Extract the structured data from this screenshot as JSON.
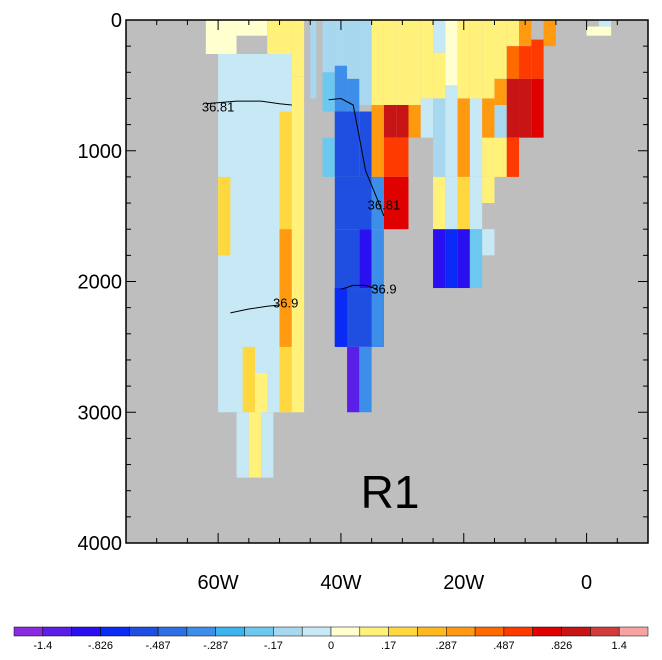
{
  "chart_data": {
    "type": "heatmap",
    "title": "",
    "xlabel": "",
    "ylabel": "",
    "panel_label": "R1",
    "x_axis": {
      "range": [
        -75,
        10
      ],
      "ticks": [
        {
          "value": -60,
          "label": "60W"
        },
        {
          "value": -40,
          "label": "40W"
        },
        {
          "value": -20,
          "label": "20W"
        },
        {
          "value": 0,
          "label": "0"
        }
      ]
    },
    "y_axis": {
      "range": [
        0,
        4000
      ],
      "inverted": true,
      "ticks": [
        {
          "value": 0,
          "label": "0"
        },
        {
          "value": 1000,
          "label": "1000"
        },
        {
          "value": 2000,
          "label": "2000"
        },
        {
          "value": 3000,
          "label": "3000"
        },
        {
          "value": 4000,
          "label": "4000"
        }
      ]
    },
    "missing_color": "#bebebe",
    "colorbar": {
      "colors": [
        "#8a2be2",
        "#5a1ee6",
        "#2a0ff0",
        "#0a2af5",
        "#1f4fe0",
        "#2f6fe6",
        "#3c8ee8",
        "#3cb4f0",
        "#6dc8f0",
        "#a7d8ef",
        "#c7e8f5",
        "#ffffd0",
        "#fff17a",
        "#ffd840",
        "#ffb81e",
        "#ff9a10",
        "#ff6a00",
        "#ff3a00",
        "#e00000",
        "#c81414",
        "#d23c3c",
        "#f7a3a3"
      ],
      "labels": [
        "-1.4",
        "-.826",
        "-.487",
        "-.287",
        "-.17",
        "0",
        ".17",
        ".287",
        ".487",
        ".826",
        "1.4"
      ]
    },
    "cells": [
      {
        "x0": -62,
        "x1": -57,
        "y0": 0,
        "y1": 260,
        "value": 0.0
      },
      {
        "x0": -57,
        "x1": -52,
        "y0": 0,
        "y1": 120,
        "value": 0.0
      },
      {
        "x0": -52,
        "x1": -48,
        "y0": 0,
        "y1": 700,
        "value": 0.12
      },
      {
        "x0": -48,
        "x1": -46,
        "y0": 0,
        "y1": 430,
        "value": 0.12
      },
      {
        "x0": -60,
        "x1": -48,
        "y0": 260,
        "y1": 3000,
        "value": -0.05
      },
      {
        "x0": -60,
        "x1": -58,
        "y0": 1200,
        "y1": 1800,
        "value": 0.2
      },
      {
        "x0": -50,
        "x1": -48,
        "y0": 700,
        "y1": 3000,
        "value": 0.2
      },
      {
        "x0": -50,
        "x1": -48,
        "y0": 1600,
        "y1": 2200,
        "value": 0.35
      },
      {
        "x0": -50,
        "x1": -48,
        "y0": 2200,
        "y1": 2500,
        "value": 0.3
      },
      {
        "x0": -48,
        "x1": -46,
        "y0": 430,
        "y1": 3000,
        "value": 0.12
      },
      {
        "x0": -56,
        "x1": -54,
        "y0": 2500,
        "y1": 3000,
        "value": 0.2
      },
      {
        "x0": -54,
        "x1": -52,
        "y0": 2700,
        "y1": 3000,
        "value": 0.12
      },
      {
        "x0": -57,
        "x1": -55,
        "y0": 3000,
        "y1": 3500,
        "value": -0.05
      },
      {
        "x0": -55,
        "x1": -53,
        "y0": 3000,
        "y1": 3500,
        "value": 0.12
      },
      {
        "x0": -53,
        "x1": -51,
        "y0": 3000,
        "y1": 3500,
        "value": -0.05
      },
      {
        "x0": -45,
        "x1": -44,
        "y0": 0,
        "y1": 600,
        "value": -0.1
      },
      {
        "x0": -43,
        "x1": -41,
        "y0": 0,
        "y1": 400,
        "value": -0.1
      },
      {
        "x0": -43,
        "x1": -41,
        "y0": 400,
        "y1": 700,
        "value": -0.2
      },
      {
        "x0": -41,
        "x1": -39,
        "y0": 0,
        "y1": 350,
        "value": -0.1
      },
      {
        "x0": -41,
        "x1": -39,
        "y0": 350,
        "y1": 900,
        "value": -0.3
      },
      {
        "x0": -39,
        "x1": -37,
        "y0": 0,
        "y1": 450,
        "value": -0.1
      },
      {
        "x0": -39,
        "x1": -37,
        "y0": 450,
        "y1": 700,
        "value": -0.3
      },
      {
        "x0": -37,
        "x1": -35,
        "y0": 0,
        "y1": 650,
        "value": -0.1
      },
      {
        "x0": -35,
        "x1": -33,
        "y0": 0,
        "y1": 650,
        "value": 0.12
      },
      {
        "x0": -33,
        "x1": -31,
        "y0": 0,
        "y1": 650,
        "value": 0.12
      },
      {
        "x0": -31,
        "x1": -29,
        "y0": 0,
        "y1": 650,
        "value": 0.12
      },
      {
        "x0": -29,
        "x1": -27,
        "y0": 0,
        "y1": 650,
        "value": 0.12
      },
      {
        "x0": -43,
        "x1": -41,
        "y0": 900,
        "y1": 1200,
        "value": -0.2
      },
      {
        "x0": -41,
        "x1": -37,
        "y0": 700,
        "y1": 1200,
        "value": -0.5
      },
      {
        "x0": -37,
        "x1": -35,
        "y0": 700,
        "y1": 1200,
        "value": -0.5
      },
      {
        "x0": -35,
        "x1": -33,
        "y0": 650,
        "y1": 1200,
        "value": 0.35
      },
      {
        "x0": -33,
        "x1": -31,
        "y0": 650,
        "y1": 900,
        "value": 1.0
      },
      {
        "x0": -31,
        "x1": -29,
        "y0": 650,
        "y1": 900,
        "value": 1.0
      },
      {
        "x0": -29,
        "x1": -27,
        "y0": 650,
        "y1": 900,
        "value": 0.35
      },
      {
        "x0": -33,
        "x1": -29,
        "y0": 900,
        "y1": 1200,
        "value": 0.6
      },
      {
        "x0": -33,
        "x1": -29,
        "y0": 1200,
        "y1": 1600,
        "value": 0.7
      },
      {
        "x0": -41,
        "x1": -35,
        "y0": 1200,
        "y1": 1600,
        "value": -0.6
      },
      {
        "x0": -35,
        "x1": -33,
        "y0": 1200,
        "y1": 1600,
        "value": -0.3
      },
      {
        "x0": -41,
        "x1": -37,
        "y0": 1600,
        "y1": 2050,
        "value": -0.6
      },
      {
        "x0": -37,
        "x1": -35,
        "y0": 1600,
        "y1": 2050,
        "value": -1.0
      },
      {
        "x0": -35,
        "x1": -33,
        "y0": 1600,
        "y1": 2050,
        "value": -0.3
      },
      {
        "x0": -41,
        "x1": -33,
        "y0": 2050,
        "y1": 2500,
        "value": -0.6
      },
      {
        "x0": -41,
        "x1": -39,
        "y0": 2050,
        "y1": 2500,
        "value": -0.7
      },
      {
        "x0": -35,
        "x1": -33,
        "y0": 2050,
        "y1": 2500,
        "value": -0.3
      },
      {
        "x0": -39,
        "x1": -37,
        "y0": 2500,
        "y1": 3000,
        "value": -1.2
      },
      {
        "x0": -37,
        "x1": -35,
        "y0": 2500,
        "y1": 3000,
        "value": -0.3
      },
      {
        "x0": -27,
        "x1": -25,
        "y0": 0,
        "y1": 600,
        "value": 0.12
      },
      {
        "x0": -25,
        "x1": -23,
        "y0": 0,
        "y1": 250,
        "value": -0.05
      },
      {
        "x0": -25,
        "x1": -23,
        "y0": 250,
        "y1": 600,
        "value": 0.12
      },
      {
        "x0": -23,
        "x1": -21,
        "y0": 0,
        "y1": 500,
        "value": 0.0
      },
      {
        "x0": -27,
        "x1": -25,
        "y0": 600,
        "y1": 900,
        "value": -0.05
      },
      {
        "x0": -25,
        "x1": -23,
        "y0": 600,
        "y1": 1200,
        "value": -0.15
      },
      {
        "x0": -23,
        "x1": -21,
        "y0": 500,
        "y1": 1200,
        "value": -0.05
      },
      {
        "x0": -21,
        "x1": -19,
        "y0": 0,
        "y1": 600,
        "value": 0.12
      },
      {
        "x0": -19,
        "x1": -17,
        "y0": 0,
        "y1": 600,
        "value": 0.12
      },
      {
        "x0": -17,
        "x1": -15,
        "y0": 0,
        "y1": 600,
        "value": 0.12
      },
      {
        "x0": -21,
        "x1": -19,
        "y0": 600,
        "y1": 1200,
        "value": 0.35
      },
      {
        "x0": -19,
        "x1": -17,
        "y0": 600,
        "y1": 1200,
        "value": -0.05
      },
      {
        "x0": -17,
        "x1": -15,
        "y0": 600,
        "y1": 900,
        "value": 0.3
      },
      {
        "x0": -17,
        "x1": -15,
        "y0": 900,
        "y1": 1200,
        "value": 0.12
      },
      {
        "x0": -15,
        "x1": -13,
        "y0": 0,
        "y1": 450,
        "value": 0.12
      },
      {
        "x0": -15,
        "x1": -13,
        "y0": 450,
        "y1": 650,
        "value": 0.35
      },
      {
        "x0": -15,
        "x1": -13,
        "y0": 650,
        "y1": 900,
        "value": -0.1
      },
      {
        "x0": -15,
        "x1": -13,
        "y0": 900,
        "y1": 1200,
        "value": 0.12
      },
      {
        "x0": -13,
        "x1": -11,
        "y0": 0,
        "y1": 200,
        "value": 0.12
      },
      {
        "x0": -13,
        "x1": -11,
        "y0": 200,
        "y1": 450,
        "value": 0.45
      },
      {
        "x0": -13,
        "x1": -11,
        "y0": 450,
        "y1": 900,
        "value": 1.0
      },
      {
        "x0": -13,
        "x1": -11,
        "y0": 900,
        "y1": 1200,
        "value": 0.5
      },
      {
        "x0": -11,
        "x1": -9,
        "y0": 0,
        "y1": 200,
        "value": 0.35
      },
      {
        "x0": -11,
        "x1": -9,
        "y0": 200,
        "y1": 450,
        "value": 0.6
      },
      {
        "x0": -11,
        "x1": -9,
        "y0": 450,
        "y1": 900,
        "value": 1.0
      },
      {
        "x0": -9,
        "x1": -7,
        "y0": 150,
        "y1": 450,
        "value": 0.5
      },
      {
        "x0": -9,
        "x1": -7,
        "y0": 450,
        "y1": 900,
        "value": 0.8
      },
      {
        "x0": -7,
        "x1": -5,
        "y0": 0,
        "y1": 200,
        "value": 0.35
      },
      {
        "x0": -25,
        "x1": -23,
        "y0": 1200,
        "y1": 1600,
        "value": 0.12
      },
      {
        "x0": -23,
        "x1": -21,
        "y0": 1200,
        "y1": 1600,
        "value": -0.05
      },
      {
        "x0": -21,
        "x1": -19,
        "y0": 1200,
        "y1": 1600,
        "value": 0.2
      },
      {
        "x0": -19,
        "x1": -17,
        "y0": 1200,
        "y1": 1600,
        "value": -0.05
      },
      {
        "x0": -17,
        "x1": -15,
        "y0": 1200,
        "y1": 1400,
        "value": 0.12
      },
      {
        "x0": -25,
        "x1": -23,
        "y0": 1600,
        "y1": 2050,
        "value": -1.0
      },
      {
        "x0": -23,
        "x1": -21,
        "y0": 1600,
        "y1": 2050,
        "value": -0.7
      },
      {
        "x0": -21,
        "x1": -19,
        "y0": 1600,
        "y1": 2050,
        "value": -1.0
      },
      {
        "x0": -19,
        "x1": -17,
        "y0": 1600,
        "y1": 2050,
        "value": -0.2
      },
      {
        "x0": -17,
        "x1": -15,
        "y0": 1600,
        "y1": 1800,
        "value": -0.05
      },
      {
        "x0": 0,
        "x1": 4,
        "y0": 50,
        "y1": 120,
        "value": 0.0
      },
      {
        "x0": 2,
        "x1": 4,
        "y0": 0,
        "y1": 50,
        "value": -0.05
      }
    ],
    "contours": [
      {
        "label": "36.81",
        "points": [
          [
            -62,
            640
          ],
          [
            -57,
            620
          ],
          [
            -53,
            620
          ],
          [
            -50,
            640
          ],
          [
            -48,
            650
          ]
        ],
        "label_at": [
          -60,
          670
        ]
      },
      {
        "label": "36.81",
        "points": [
          [
            -42,
            610
          ],
          [
            -40,
            600
          ],
          [
            -38,
            650
          ],
          [
            -37,
            900
          ],
          [
            -36,
            1150
          ],
          [
            -34,
            1380
          ],
          [
            -33,
            1500
          ]
        ],
        "label_at": [
          -33,
          1420
        ]
      },
      {
        "label": "36.9",
        "points": [
          [
            -58,
            2240
          ],
          [
            -55,
            2210
          ],
          [
            -52,
            2190
          ],
          [
            -50,
            2180
          ]
        ],
        "label_at": [
          -49,
          2170
        ]
      },
      {
        "label": "36.9",
        "points": [
          [
            -40,
            2060
          ],
          [
            -38,
            2030
          ],
          [
            -36,
            2030
          ],
          [
            -34,
            2060
          ]
        ],
        "label_at": [
          -33,
          2060
        ]
      }
    ]
  }
}
